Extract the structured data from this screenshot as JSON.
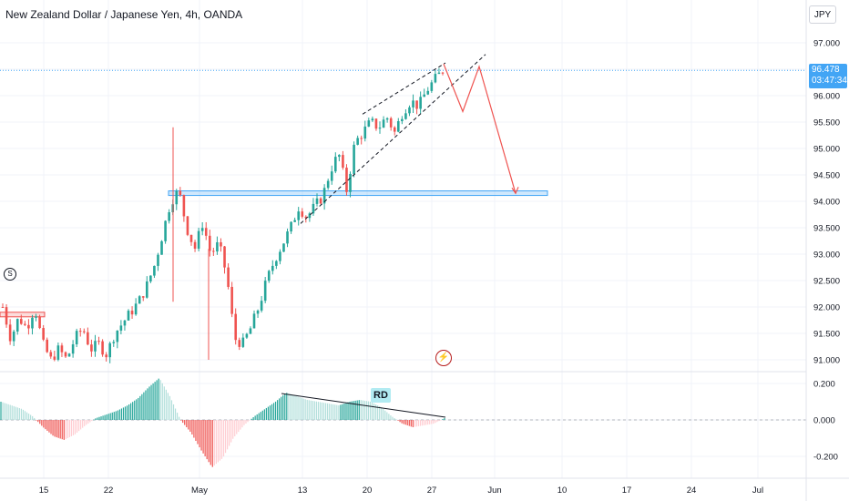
{
  "title": "New Zealand Dollar / Japanese Yen, 4h, OANDA",
  "currency_button": "JPY",
  "last_price": {
    "value": "96.478",
    "countdown": "03:47:34"
  },
  "annotation_label": "RD",
  "icons": {
    "s_marker": "S",
    "bolt": "⚡"
  },
  "colors": {
    "up": "#26a69a",
    "down": "#ef5350",
    "accent": "#42a5f5",
    "osc_up_strong": "#26a69a",
    "osc_up_weak": "#b2dfdb",
    "osc_down_strong": "#ef5350",
    "osc_down_weak": "#ffcdd2"
  },
  "chart_data": [
    {
      "type": "candlestick",
      "title": "New Zealand Dollar / Japanese Yen, 4h, OANDA",
      "y_ticks": [
        "97.000",
        "96.500",
        "96.000",
        "95.500",
        "95.000",
        "94.500",
        "94.000",
        "93.500",
        "93.000",
        "92.500",
        "92.000",
        "91.500",
        "91.000"
      ],
      "ylim": [
        90.85,
        97.3
      ],
      "x_ticks": [
        "15",
        "22",
        "May",
        "13",
        "20",
        "27",
        "Jun",
        "10",
        "17",
        "24",
        "Jul"
      ],
      "close_path": [
        92.0,
        91.4,
        91.8,
        91.6,
        92.0,
        91.3,
        91.0,
        91.2,
        91.0,
        91.4,
        91.6,
        91.2,
        91.3,
        91.1,
        91.5,
        91.7,
        91.9,
        92.1,
        92.4,
        92.8,
        93.4,
        94.0,
        94.2,
        93.5,
        93.1,
        93.6,
        93.0,
        93.2,
        92.6,
        91.4,
        91.3,
        91.6,
        92.0,
        92.5,
        92.9,
        93.2,
        93.5,
        93.9,
        93.7,
        93.9,
        94.1,
        94.6,
        94.9,
        94.2,
        95.1,
        95.3,
        95.5,
        95.4,
        95.6,
        95.3,
        95.7,
        95.9,
        95.8,
        96.1,
        96.3,
        96.478
      ],
      "close_path_note": "",
      "horizontal_zone": [
        94.12,
        94.18
      ],
      "small_zone": [
        91.8,
        91.9
      ],
      "last_price": 96.478,
      "projection": [
        96.6,
        95.7,
        96.55,
        94.15
      ],
      "grid": true
    },
    {
      "type": "bar",
      "y_ticks": [
        "0.200",
        "0.000",
        "-0.200"
      ],
      "ylim": [
        -0.29,
        0.26
      ],
      "zero_line": 0.0,
      "values_outline": [
        0.1,
        0.08,
        0.06,
        0.02,
        -0.04,
        -0.09,
        -0.11,
        -0.08,
        -0.03,
        0.01,
        0.03,
        0.05,
        0.08,
        0.12,
        0.18,
        0.23,
        0.13,
        0.0,
        -0.07,
        -0.17,
        -0.26,
        -0.21,
        -0.1,
        -0.03,
        0.02,
        0.06,
        0.1,
        0.15,
        0.13,
        0.11,
        0.1,
        0.09,
        0.08,
        0.1,
        0.11,
        0.1,
        0.07,
        0.02,
        -0.02,
        -0.04,
        -0.03,
        -0.02,
        0.01
      ]
    }
  ]
}
